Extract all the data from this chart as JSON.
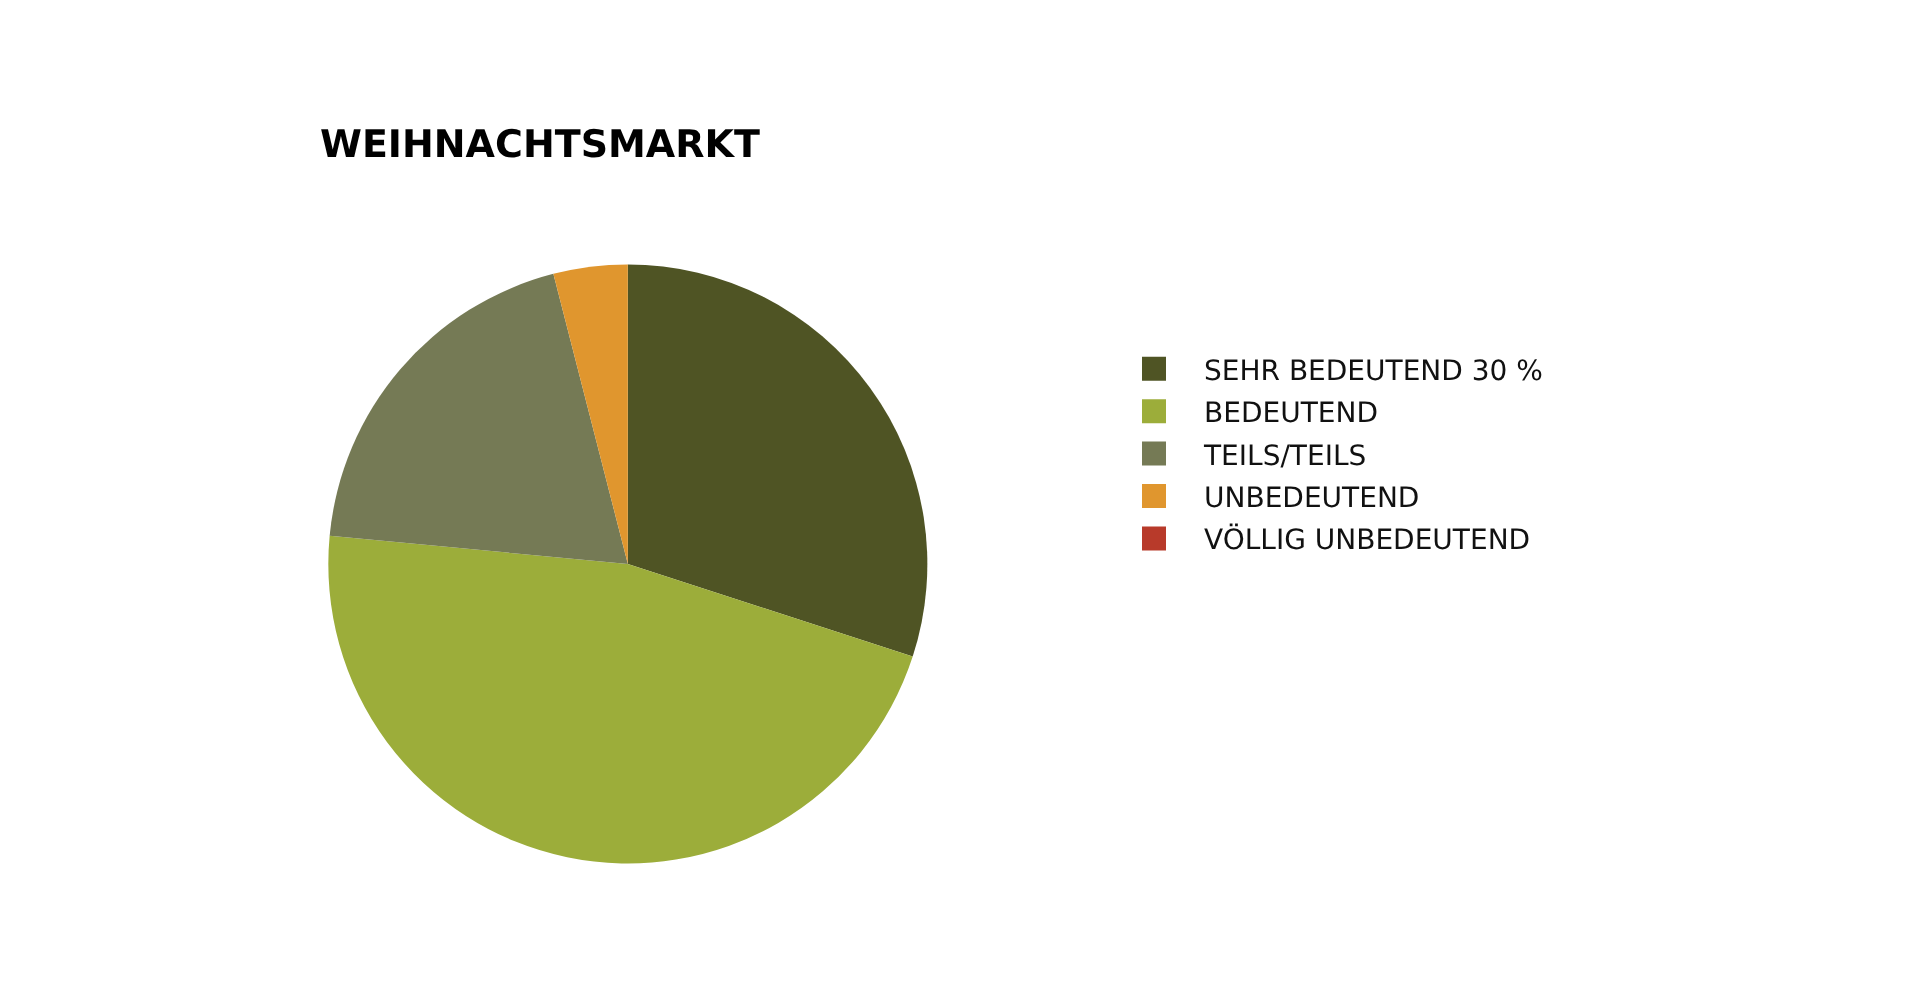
{
  "chart_data": {
    "type": "pie",
    "title": "WEIHNACHTSMARKT",
    "categories": [
      "SEHR BEDEUTEND 30 %",
      "BEDEUTEND",
      "TEILS/TEILS",
      "UNBEDEUTEND",
      "VÖLLIG UNBEDEUTEND"
    ],
    "values": [
      30,
      46.5,
      19.5,
      4,
      0
    ],
    "colors": [
      "#4f5424",
      "#9cad3a",
      "#757a55",
      "#e0962e",
      "#b83a2a"
    ],
    "legend": "right"
  }
}
